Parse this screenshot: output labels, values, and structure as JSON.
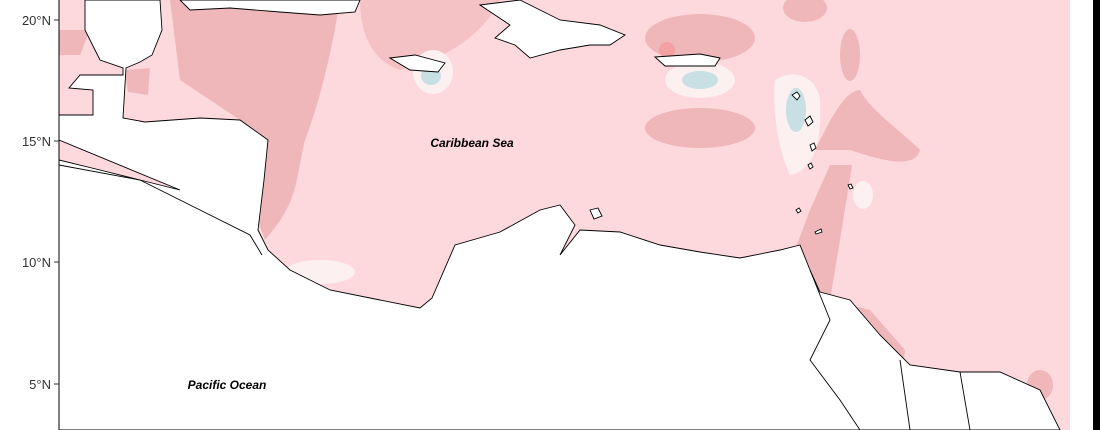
{
  "map": {
    "labels": {
      "sea": "Caribbean Sea",
      "ocean": "Pacific Ocean"
    },
    "y_axis_ticks": [
      "20°N",
      "15°N",
      "10°N",
      "5°N"
    ],
    "colors": {
      "base_anomaly": "#fdd9de",
      "strong_anomaly": "#efb7ba",
      "weak_anomaly": "#fdf0f0",
      "negative_anomaly": "#c8dfe4",
      "peak_anomaly": "#f5a0a2",
      "land": "#ffffff",
      "coastline": "#000000"
    }
  }
}
